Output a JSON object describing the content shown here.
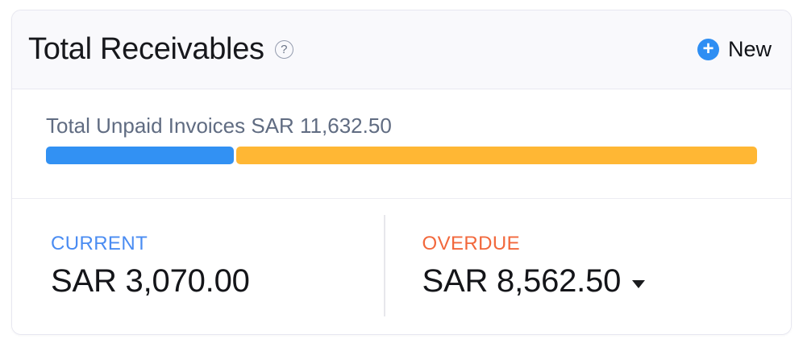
{
  "colors": {
    "progress_current": "#3291f3",
    "progress_overdue": "#ffb734",
    "current_label": "#4a8cf2",
    "overdue_label": "#f2683c",
    "new_button_accent": "#2e8ef3",
    "header_background": "#f9f9fc"
  },
  "card": {
    "header": {
      "title": "Total Receivables",
      "help_glyph": "?",
      "new_button": {
        "plus_glyph": "+",
        "label": "New"
      }
    },
    "summary": {
      "unpaid_invoices_label": "Total Unpaid Invoices SAR 11,632.50",
      "progress": {
        "current_style": "width:26.4%",
        "current_percent": "26.4%"
      }
    },
    "stats": {
      "current": {
        "label": "CURRENT",
        "amount": "SAR 3,070.00"
      },
      "overdue": {
        "label": "OVERDUE",
        "amount": "SAR 8,562.50",
        "caret_icon": "caret-down-icon"
      }
    }
  }
}
